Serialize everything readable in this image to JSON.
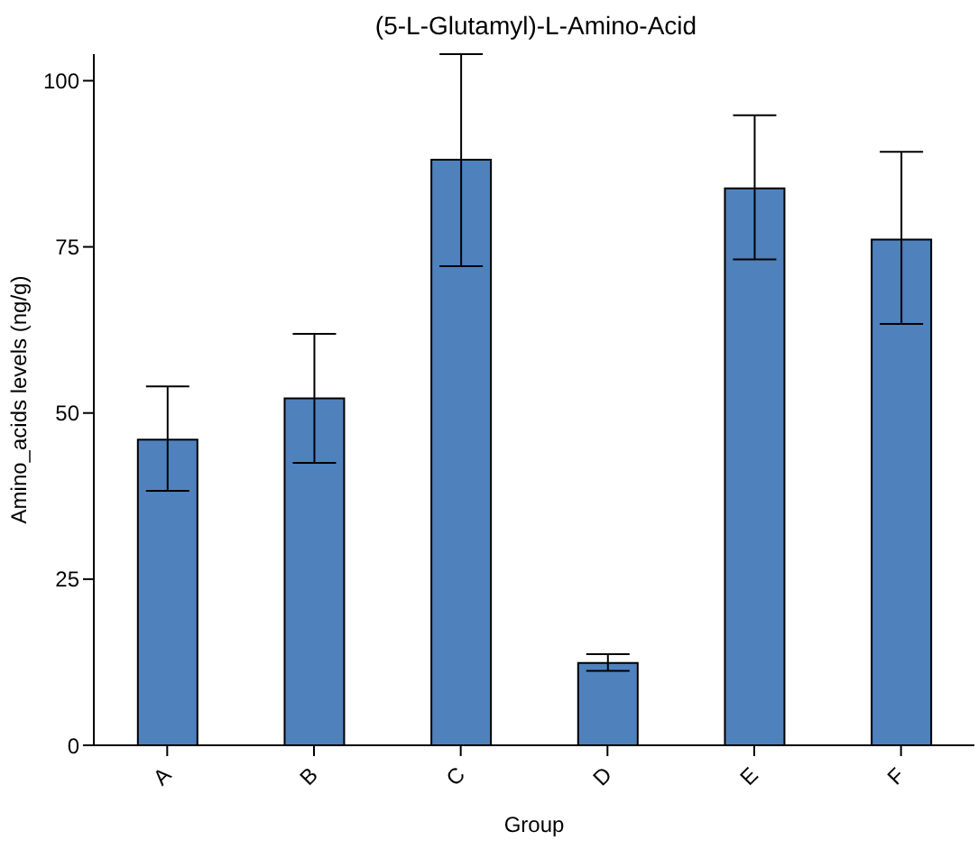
{
  "chart_data": {
    "type": "bar",
    "title": "(5-L-Glutamyl)-L-Amino-Acid",
    "xlabel": "Group",
    "ylabel": "Amino_acids levels (ng/g)",
    "categories": [
      "A",
      "B",
      "C",
      "D",
      "E",
      "F"
    ],
    "values": [
      46.0,
      52.2,
      88.1,
      12.4,
      83.8,
      76.1
    ],
    "errors": [
      [
        38.3,
        54.0
      ],
      [
        42.5,
        61.9
      ],
      [
        72.1,
        104
      ],
      [
        11.2,
        13.7
      ],
      [
        73.1,
        94.8
      ],
      [
        63.4,
        89.3
      ]
    ],
    "color": "#4f81bd",
    "ylim": [
      0,
      104
    ],
    "yticks": [
      0,
      25,
      50,
      75,
      100
    ],
    "grid": false,
    "legend": false
  }
}
